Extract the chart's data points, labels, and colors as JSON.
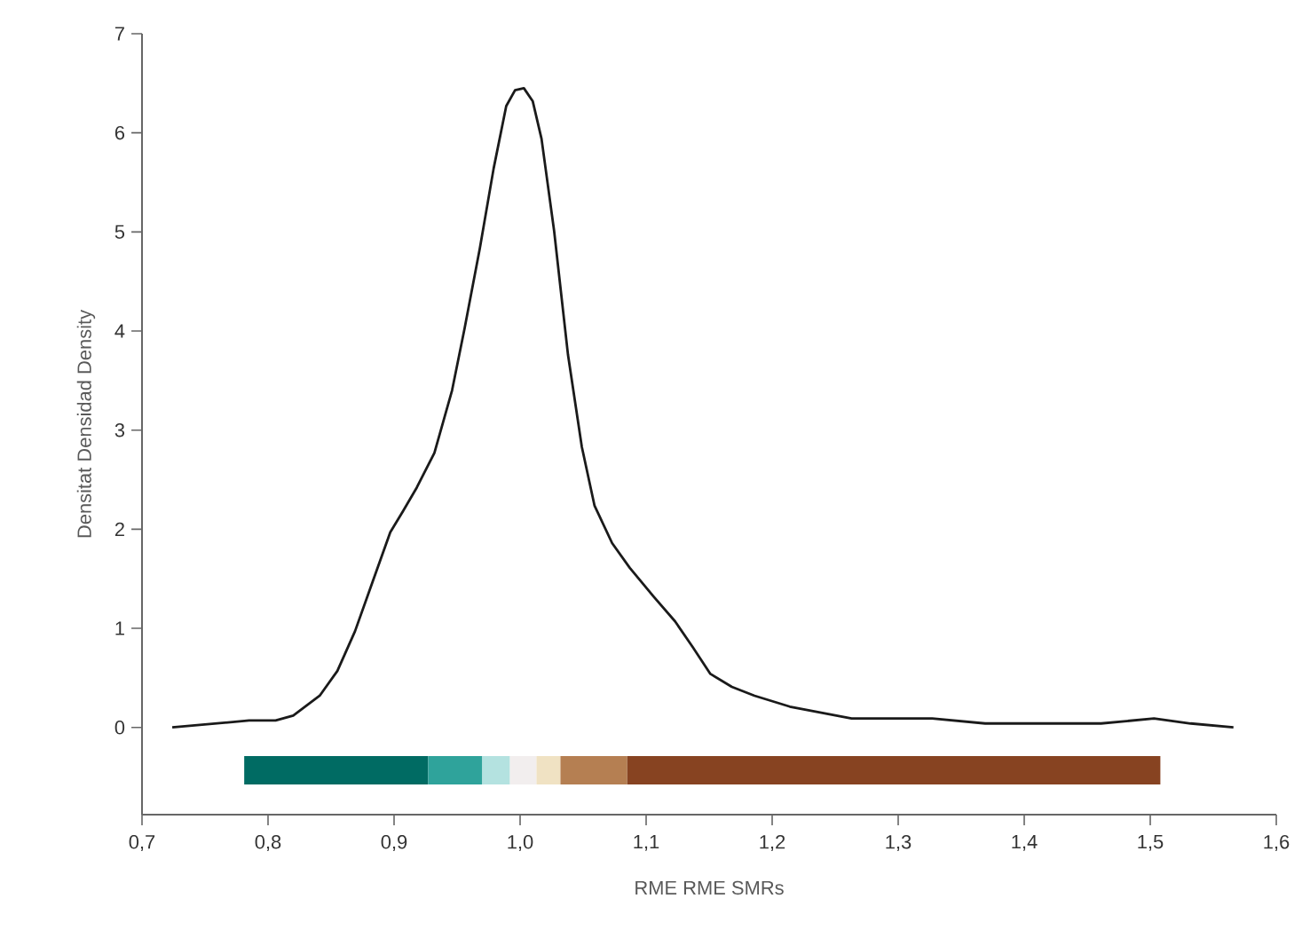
{
  "chart_data": {
    "type": "line",
    "xlabel": "RME RME SMRs",
    "ylabel": "Densitat Densidad Density",
    "xlim": [
      0.7,
      1.6
    ],
    "ylim": [
      -0.88,
      7
    ],
    "xticks": [
      {
        "value": 0.7,
        "label": "0,7"
      },
      {
        "value": 0.8,
        "label": "0,8"
      },
      {
        "value": 0.9,
        "label": "0,9"
      },
      {
        "value": 1.0,
        "label": "1,0"
      },
      {
        "value": 1.1,
        "label": "1,1"
      },
      {
        "value": 1.2,
        "label": "1,2"
      },
      {
        "value": 1.3,
        "label": "1,3"
      },
      {
        "value": 1.4,
        "label": "1,4"
      },
      {
        "value": 1.5,
        "label": "1,5"
      },
      {
        "value": 1.6,
        "label": "1,6"
      }
    ],
    "yticks": [
      0,
      1,
      2,
      3,
      4,
      5,
      6,
      7
    ],
    "grid": false,
    "marker": "none",
    "line_style": "solid",
    "series": [
      {
        "color": "#1a1a1a",
        "x": [
          0.724,
          0.785,
          0.806,
          0.82,
          0.841,
          0.855,
          0.869,
          0.883,
          0.897,
          0.907,
          0.918,
          0.932,
          0.946,
          0.956,
          0.968,
          0.979,
          0.989,
          0.996,
          1.003,
          1.01,
          1.017,
          1.027,
          1.038,
          1.049,
          1.059,
          1.073,
          1.087,
          1.106,
          1.123,
          1.137,
          1.151,
          1.168,
          1.186,
          1.214,
          1.263,
          1.327,
          1.369,
          1.461,
          1.503,
          1.532,
          1.566
        ],
        "values": [
          0,
          0.07,
          0.07,
          0.12,
          0.32,
          0.57,
          0.97,
          1.47,
          1.97,
          2.18,
          2.42,
          2.77,
          3.4,
          4.03,
          4.83,
          5.64,
          6.27,
          6.43,
          6.45,
          6.32,
          5.94,
          5.01,
          3.76,
          2.83,
          2.24,
          1.86,
          1.61,
          1.32,
          1.07,
          0.81,
          0.54,
          0.41,
          0.32,
          0.21,
          0.09,
          0.09,
          0.04,
          0.04,
          0.09,
          0.04,
          0
        ]
      }
    ]
  }
}
